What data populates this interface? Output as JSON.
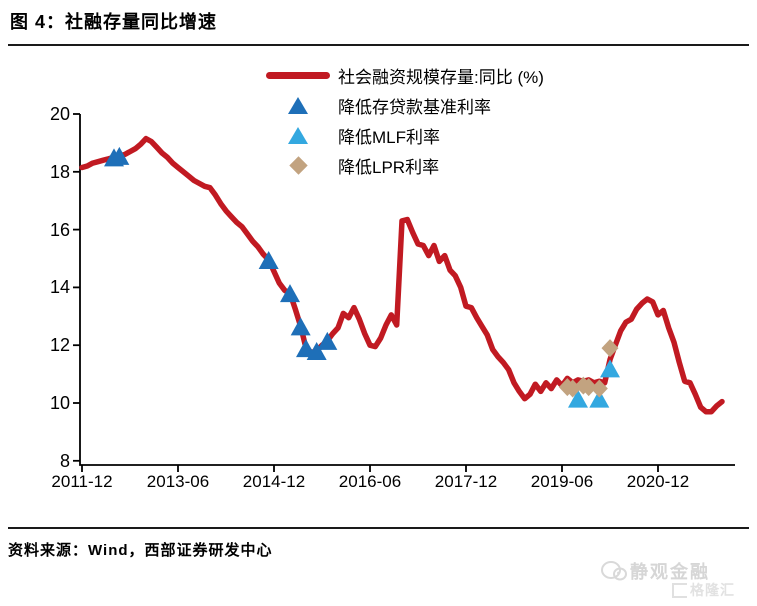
{
  "title": "图 4：社融存量同比增速",
  "footer": {
    "source_label": "资料来源：Wind，西部证券研发中心"
  },
  "watermark": {
    "brand": "静观金融",
    "platform": "格隆汇"
  },
  "colors": {
    "axis": "#000000",
    "text": "#000000",
    "line_red": "#C11A22",
    "benchmark_blue": "#1E6FB8",
    "mlf_blue": "#33A8E0",
    "lpr_tan": "#C2A380",
    "watermark_gray": "#D6D6D6"
  },
  "chart_data": {
    "type": "line",
    "title": "社融存量同比增速",
    "ylim": [
      8,
      20
    ],
    "y_ticks": [
      20,
      18,
      16,
      14,
      12,
      10,
      8
    ],
    "x_tick_labels": [
      "2011-12",
      "2013-06",
      "2014-12",
      "2016-06",
      "2017-12",
      "2019-06",
      "2020-12"
    ],
    "grid": false,
    "legend_position": "top",
    "series": [
      {
        "name": "社会融资规模存量:同比 (%)",
        "type": "line",
        "color": "#C11A22",
        "start": "2011-12",
        "freq": "monthly",
        "values": [
          18.15,
          18.2,
          18.3,
          18.35,
          18.4,
          18.45,
          18.5,
          18.55,
          18.6,
          18.7,
          18.8,
          18.95,
          19.15,
          19.05,
          18.85,
          18.65,
          18.5,
          18.3,
          18.15,
          18.0,
          17.85,
          17.7,
          17.6,
          17.5,
          17.45,
          17.2,
          16.9,
          16.65,
          16.45,
          16.25,
          16.1,
          15.85,
          15.6,
          15.4,
          15.15,
          14.95,
          14.55,
          14.15,
          13.9,
          13.8,
          13.25,
          12.65,
          11.9,
          11.75,
          11.8,
          12.0,
          12.15,
          12.4,
          12.6,
          13.1,
          12.95,
          13.3,
          12.9,
          12.4,
          12.0,
          11.95,
          12.25,
          12.7,
          13.05,
          12.7,
          16.3,
          16.35,
          15.9,
          15.5,
          15.45,
          15.1,
          15.45,
          14.9,
          15.1,
          14.6,
          14.4,
          14.0,
          13.35,
          13.3,
          12.95,
          12.65,
          12.35,
          11.85,
          11.6,
          11.4,
          11.15,
          10.7,
          10.4,
          10.15,
          10.3,
          10.65,
          10.4,
          10.7,
          10.5,
          10.8,
          10.6,
          10.85,
          10.7,
          10.8,
          10.75,
          10.8,
          10.7,
          10.75,
          10.7,
          11.5,
          12.0,
          12.5,
          12.8,
          12.9,
          13.25,
          13.45,
          13.6,
          13.5,
          13.05,
          13.2,
          12.6,
          12.1,
          11.4,
          10.75,
          10.7,
          10.3,
          9.85,
          9.7,
          9.7,
          9.9,
          10.05
        ]
      },
      {
        "name": "降低存贷款基准利率",
        "type": "scatter",
        "marker": "triangle",
        "color": "#1E6FB8",
        "points": [
          [
            "2012-06",
            18.5
          ],
          [
            "2012-07",
            18.55
          ],
          [
            "2014-11",
            14.95
          ],
          [
            "2015-03",
            13.8
          ],
          [
            "2015-05",
            12.65
          ],
          [
            "2015-06",
            11.9
          ],
          [
            "2015-08",
            11.8
          ],
          [
            "2015-10",
            12.15
          ]
        ]
      },
      {
        "name": "降低MLF利率",
        "type": "scatter",
        "marker": "triangle",
        "color": "#33A8E0",
        "points": [
          [
            "2019-09",
            10.15
          ],
          [
            "2020-01",
            10.15
          ],
          [
            "2020-03",
            11.2
          ]
        ]
      },
      {
        "name": "降低LPR利率",
        "type": "scatter",
        "marker": "diamond",
        "color": "#C2A380",
        "points": [
          [
            "2019-07",
            10.55
          ],
          [
            "2019-08",
            10.5
          ],
          [
            "2019-10",
            10.6
          ],
          [
            "2019-11",
            10.55
          ],
          [
            "2020-01",
            10.5
          ],
          [
            "2020-03",
            11.9
          ]
        ]
      }
    ]
  }
}
